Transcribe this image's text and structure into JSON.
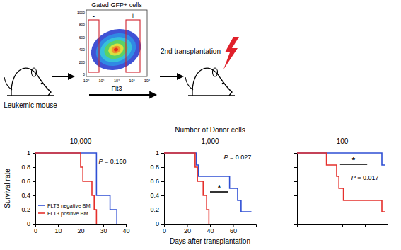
{
  "figure": {
    "schematic": {
      "source_label": "Leukemic mouse",
      "gate_title": "Gated GFP+ cells",
      "target_label": "2nd transplantation",
      "flow_xlabel": "Flt3",
      "flow_xticks": [
        "10⁰",
        "10¹",
        "10²",
        "10³",
        "10⁴"
      ],
      "flow_yticks": [
        0,
        200,
        400,
        600,
        800,
        1000
      ],
      "gates": [
        "-",
        "+"
      ]
    },
    "panel_header": "Number of Donor cells",
    "xlabel": "Days after transplantation",
    "ylabel": "Survival rate"
  },
  "chart_data": [
    {
      "type": "step",
      "title": "10,000",
      "xlim": [
        0,
        40
      ],
      "xticks": [
        0,
        10,
        20,
        30,
        40
      ],
      "ylim": [
        0,
        1
      ],
      "yticks": [
        0,
        0.2,
        0.4,
        0.6,
        0.8,
        1
      ],
      "legend": "lower left",
      "series": [
        {
          "name": "FLT3 negative BM",
          "color": "#2f4fd4",
          "x": [
            0,
            27,
            33,
            36
          ],
          "values": [
            1,
            0.4,
            0.2,
            0
          ]
        },
        {
          "name": "FLT3 positive BM",
          "color": "#e5302c",
          "x": [
            0,
            20,
            21,
            25,
            26,
            27
          ],
          "values": [
            1,
            0.8,
            0.6,
            0.4,
            0.2,
            0
          ]
        }
      ],
      "annotations": [
        {
          "text": "P = 0.160",
          "x": 28,
          "y": 0.85
        }
      ]
    },
    {
      "type": "step",
      "title": "1,000",
      "xlim": [
        0,
        80
      ],
      "xticks": [
        0,
        20,
        40,
        60
      ],
      "ylim": [
        0,
        1
      ],
      "yticks": [
        0,
        0.2,
        0.4,
        0.6,
        0.8,
        1
      ],
      "series": [
        {
          "color": "#2f4fd4",
          "x": [
            0,
            28,
            30,
            57,
            64,
            67,
            76
          ],
          "values": [
            1,
            0.83,
            0.67,
            0.5,
            0.33,
            0.17,
            0.17
          ]
        },
        {
          "color": "#e5302c",
          "x": [
            0,
            27,
            29,
            34,
            37,
            39
          ],
          "values": [
            1,
            0.8,
            0.6,
            0.4,
            0.2,
            0
          ]
        }
      ],
      "annotations": [
        {
          "text": "P = 0.027",
          "x": 52,
          "y": 0.91
        },
        {
          "text": "*",
          "x": [
            40,
            56
          ],
          "y": 0.45
        }
      ]
    },
    {
      "type": "step",
      "title": "100",
      "xlim": [
        0,
        80
      ],
      "xticks": [
        0,
        20,
        40,
        60
      ],
      "ylim": [
        0,
        1
      ],
      "yticks": [
        0,
        0.2,
        0.4,
        0.6,
        0.8,
        1
      ],
      "tick_labels": false,
      "series": [
        {
          "color": "#2f4fd4",
          "x": [
            0,
            75,
            78
          ],
          "values": [
            1,
            0.83,
            0.83
          ]
        },
        {
          "color": "#e5302c",
          "x": [
            0,
            26,
            35,
            37,
            41,
            75,
            78
          ],
          "values": [
            1,
            0.83,
            0.67,
            0.5,
            0.33,
            0.17,
            0.17
          ]
        }
      ],
      "annotations": [
        {
          "text": "P = 0.017",
          "x": 48,
          "y": 0.62
        },
        {
          "text": "*",
          "x": [
            38,
            62
          ],
          "y": 0.84
        }
      ]
    }
  ]
}
